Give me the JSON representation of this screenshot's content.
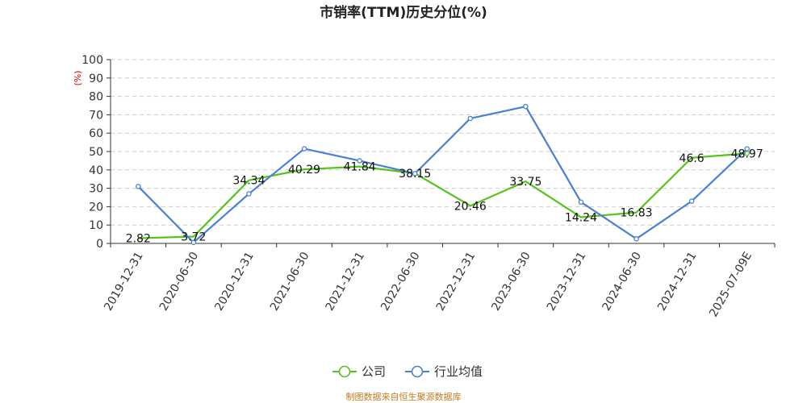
{
  "colors": {
    "company": "#52c41a",
    "industry": "#4a7fd6",
    "grid": "#cccccc",
    "axis": "#333333",
    "unit": "#e00000",
    "source": "#c47a1a"
  },
  "chart_data": {
    "type": "line",
    "title": "市销率(TTM)历史分位(%)",
    "ylabel": "(%)",
    "ylim": [
      0,
      100
    ],
    "yticks": [
      0,
      10,
      20,
      30,
      40,
      50,
      60,
      70,
      80,
      90,
      100
    ],
    "grid": true,
    "legend_position": "bottom-center",
    "categories": [
      "2019-12-31",
      "2020-06-30",
      "2020-12-31",
      "2021-06-30",
      "2021-12-31",
      "2022-06-30",
      "2022-12-31",
      "2023-06-30",
      "2023-12-31",
      "2024-06-30",
      "2024-12-31",
      "2025-07-09E"
    ],
    "series": [
      {
        "name": "公司",
        "color": "#52c41a",
        "marker": "none-except-last",
        "values": [
          2.82,
          3.72,
          34.34,
          40.29,
          41.84,
          38.15,
          20.46,
          33.75,
          14.24,
          16.83,
          46.6,
          48.97
        ],
        "labels": [
          "2.82",
          "3.72",
          "34.34",
          "40.29",
          "41.84",
          "38.15",
          "20.46",
          "33.75",
          "14.24",
          "16.83",
          "46.6",
          "48.97"
        ]
      },
      {
        "name": "行业均值",
        "color": "#4a7fd6",
        "marker": "circle",
        "values": [
          31,
          0.5,
          27,
          51.5,
          45,
          38,
          68,
          74.5,
          22.5,
          2.5,
          23,
          51.5
        ]
      }
    ],
    "source": "制图数据来自恒生聚源数据库"
  }
}
